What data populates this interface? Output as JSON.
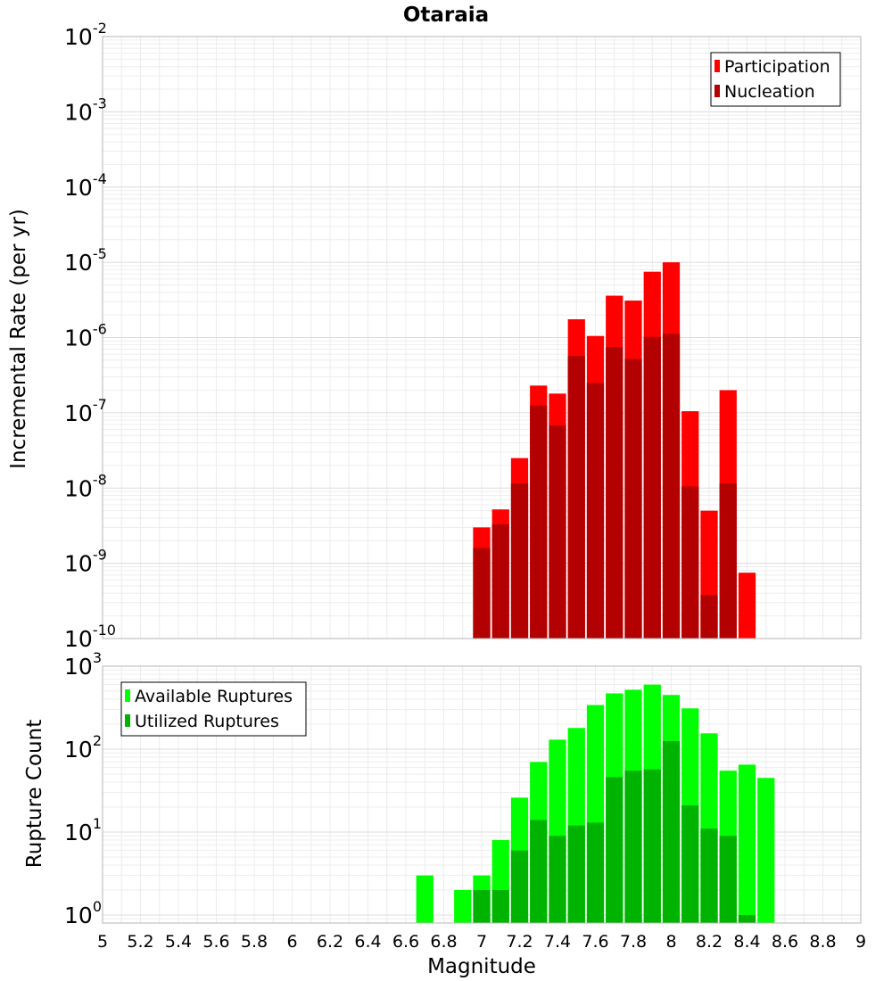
{
  "chart_data": [
    {
      "type": "bar",
      "title": "Otaraia",
      "ylabel": "Incremental Rate (per yr)",
      "xlabel": "",
      "yscale": "log",
      "ylim": [
        1e-10,
        0.01
      ],
      "xlim": [
        5,
        9
      ],
      "bin_width": 0.1,
      "grid": true,
      "legend_placement": "top-right",
      "x": [
        7.0,
        7.1,
        7.2,
        7.3,
        7.4,
        7.5,
        7.6,
        7.7,
        7.8,
        7.9,
        8.0,
        8.1,
        8.2,
        8.3,
        8.4
      ],
      "series": [
        {
          "name": "Participation",
          "color": "#ff0000",
          "values": [
            3e-09,
            5.2e-09,
            2.5e-08,
            2.3e-07,
            1.8e-07,
            1.75e-06,
            1.05e-06,
            3.6e-06,
            3.1e-06,
            7.5e-06,
            1e-05,
            1.05e-07,
            5e-09,
            2e-07,
            7.5e-10
          ]
        },
        {
          "name": "Nucleation",
          "color": "#b30000",
          "values": [
            1.6e-09,
            3.3e-09,
            1.15e-08,
            1.25e-07,
            6.8e-08,
            5.7e-07,
            2.5e-07,
            7.5e-07,
            5.2e-07,
            1.02e-06,
            1.12e-06,
            1.05e-08,
            3.8e-10,
            1.15e-08,
            null
          ]
        }
      ],
      "yticks": [
        {
          "base": "10",
          "exp": "-2"
        },
        {
          "base": "10",
          "exp": "-3"
        },
        {
          "base": "10",
          "exp": "-4"
        },
        {
          "base": "10",
          "exp": "-5"
        },
        {
          "base": "10",
          "exp": "-6"
        },
        {
          "base": "10",
          "exp": "-7"
        },
        {
          "base": "10",
          "exp": "-8"
        },
        {
          "base": "10",
          "exp": "-9"
        },
        {
          "base": "10",
          "exp": "-10"
        }
      ]
    },
    {
      "type": "bar",
      "title": "",
      "ylabel": "Rupture Count",
      "xlabel": "Magnitude",
      "yscale": "log",
      "ylim": [
        0.8,
        1000
      ],
      "xlim": [
        5,
        9
      ],
      "bin_width": 0.1,
      "grid": true,
      "legend_placement": "top-left",
      "x": [
        6.7,
        6.8,
        6.9,
        7.0,
        7.1,
        7.2,
        7.3,
        7.4,
        7.5,
        7.6,
        7.7,
        7.8,
        7.9,
        8.0,
        8.1,
        8.2,
        8.3,
        8.4,
        8.5
      ],
      "series": [
        {
          "name": "Available Ruptures",
          "color": "#00ff00",
          "values": [
            3,
            null,
            2,
            3,
            8,
            26,
            70,
            130,
            180,
            340,
            470,
            520,
            600,
            450,
            310,
            155,
            55,
            65,
            45
          ]
        },
        {
          "name": "Utilized Ruptures",
          "color": "#00b300",
          "values": [
            null,
            null,
            null,
            2,
            2,
            6,
            14,
            9,
            12,
            13,
            46,
            55,
            57,
            125,
            21,
            11,
            9,
            1,
            null
          ]
        }
      ],
      "yticks": [
        {
          "base": "10",
          "exp": "3"
        },
        {
          "base": "10",
          "exp": "2"
        },
        {
          "base": "10",
          "exp": "1"
        },
        {
          "base": "10",
          "exp": "0"
        }
      ],
      "xticks": [
        "5",
        "5.2",
        "5.4",
        "5.6",
        "5.8",
        "6",
        "6.2",
        "6.4",
        "6.6",
        "6.8",
        "7",
        "7.2",
        "7.4",
        "7.6",
        "7.8",
        "8",
        "8.2",
        "8.4",
        "8.6",
        "8.8",
        "9"
      ]
    }
  ]
}
